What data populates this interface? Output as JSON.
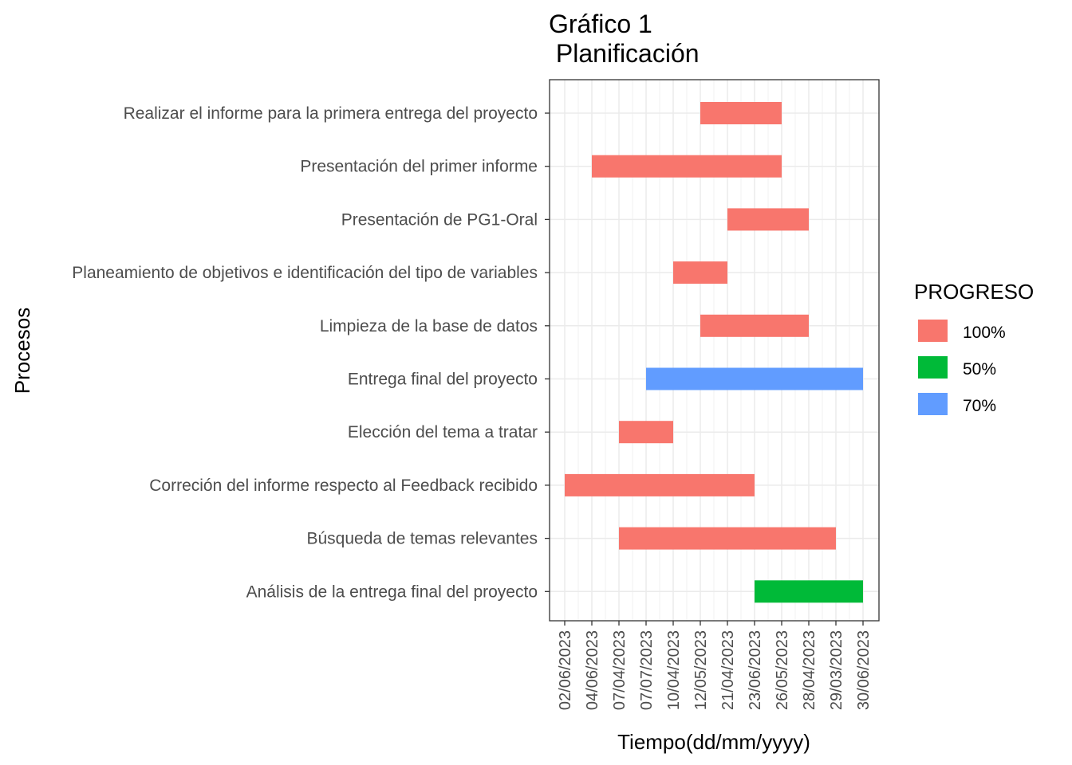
{
  "chart_data": {
    "type": "bar",
    "orientation": "horizontal",
    "title_lines": [
      "Gráfico 1",
      " Planificación"
    ],
    "xlabel": "Tiempo(dd/mm/yyyy)",
    "ylabel": "Procesos",
    "x_axis_kind": "discrete-date-labels",
    "x_ticks": [
      "02/06/2023",
      "04/06/2023",
      "07/04/2023",
      "07/07/2023",
      "10/04/2023",
      "12/05/2023",
      "21/04/2023",
      "23/06/2023",
      "26/05/2023",
      "28/04/2023",
      "29/03/2023",
      "30/06/2023"
    ],
    "categories": [
      "Realizar el informe para la primera entrega del proyecto",
      "Presentación del primer informe",
      "Presentación de PG1-Oral",
      "Planeamiento de objetivos e identificación del tipo de variables",
      "Limpieza de la base de datos",
      "Entrega final del proyecto",
      "Elección del tema a tratar",
      "Correción del informe respecto al Feedback recibido",
      "Búsqueda de temas relevantes",
      "Análisis de la entrega final del proyecto"
    ],
    "tasks": [
      {
        "task": "Realizar el informe para la primera entrega del proyecto",
        "start": "12/05/2023",
        "end": "26/05/2023",
        "progress": "100%"
      },
      {
        "task": "Presentación del primer informe",
        "start": "04/06/2023",
        "end": "26/05/2023",
        "progress": "100%"
      },
      {
        "task": "Presentación de PG1-Oral",
        "start": "21/04/2023",
        "end": "28/04/2023",
        "progress": "100%"
      },
      {
        "task": "Planeamiento de objetivos e identificación del tipo de variables",
        "start": "10/04/2023",
        "end": "21/04/2023",
        "progress": "100%"
      },
      {
        "task": "Limpieza de la base de datos",
        "start": "12/05/2023",
        "end": "28/04/2023",
        "progress": "100%"
      },
      {
        "task": "Entrega final del proyecto",
        "start": "07/07/2023",
        "end": "30/06/2023",
        "progress": "70%"
      },
      {
        "task": "Elección del tema a tratar",
        "start": "07/04/2023",
        "end": "10/04/2023",
        "progress": "100%"
      },
      {
        "task": "Correción del informe respecto al Feedback recibido",
        "start": "02/06/2023",
        "end": "23/06/2023",
        "progress": "100%"
      },
      {
        "task": "Búsqueda de temas relevantes",
        "start": "07/04/2023",
        "end": "29/03/2023",
        "progress": "100%"
      },
      {
        "task": "Análisis de la entrega final del proyecto",
        "start": "23/06/2023",
        "end": "30/06/2023",
        "progress": "50%"
      }
    ],
    "legend": {
      "title": "PROGRESO",
      "position": "right",
      "items": [
        {
          "label": "100%",
          "color": "#F8766D"
        },
        {
          "label": "50%",
          "color": "#00BA38"
        },
        {
          "label": "70%",
          "color": "#619CFF"
        }
      ]
    },
    "grid": true,
    "panel_border": true
  }
}
